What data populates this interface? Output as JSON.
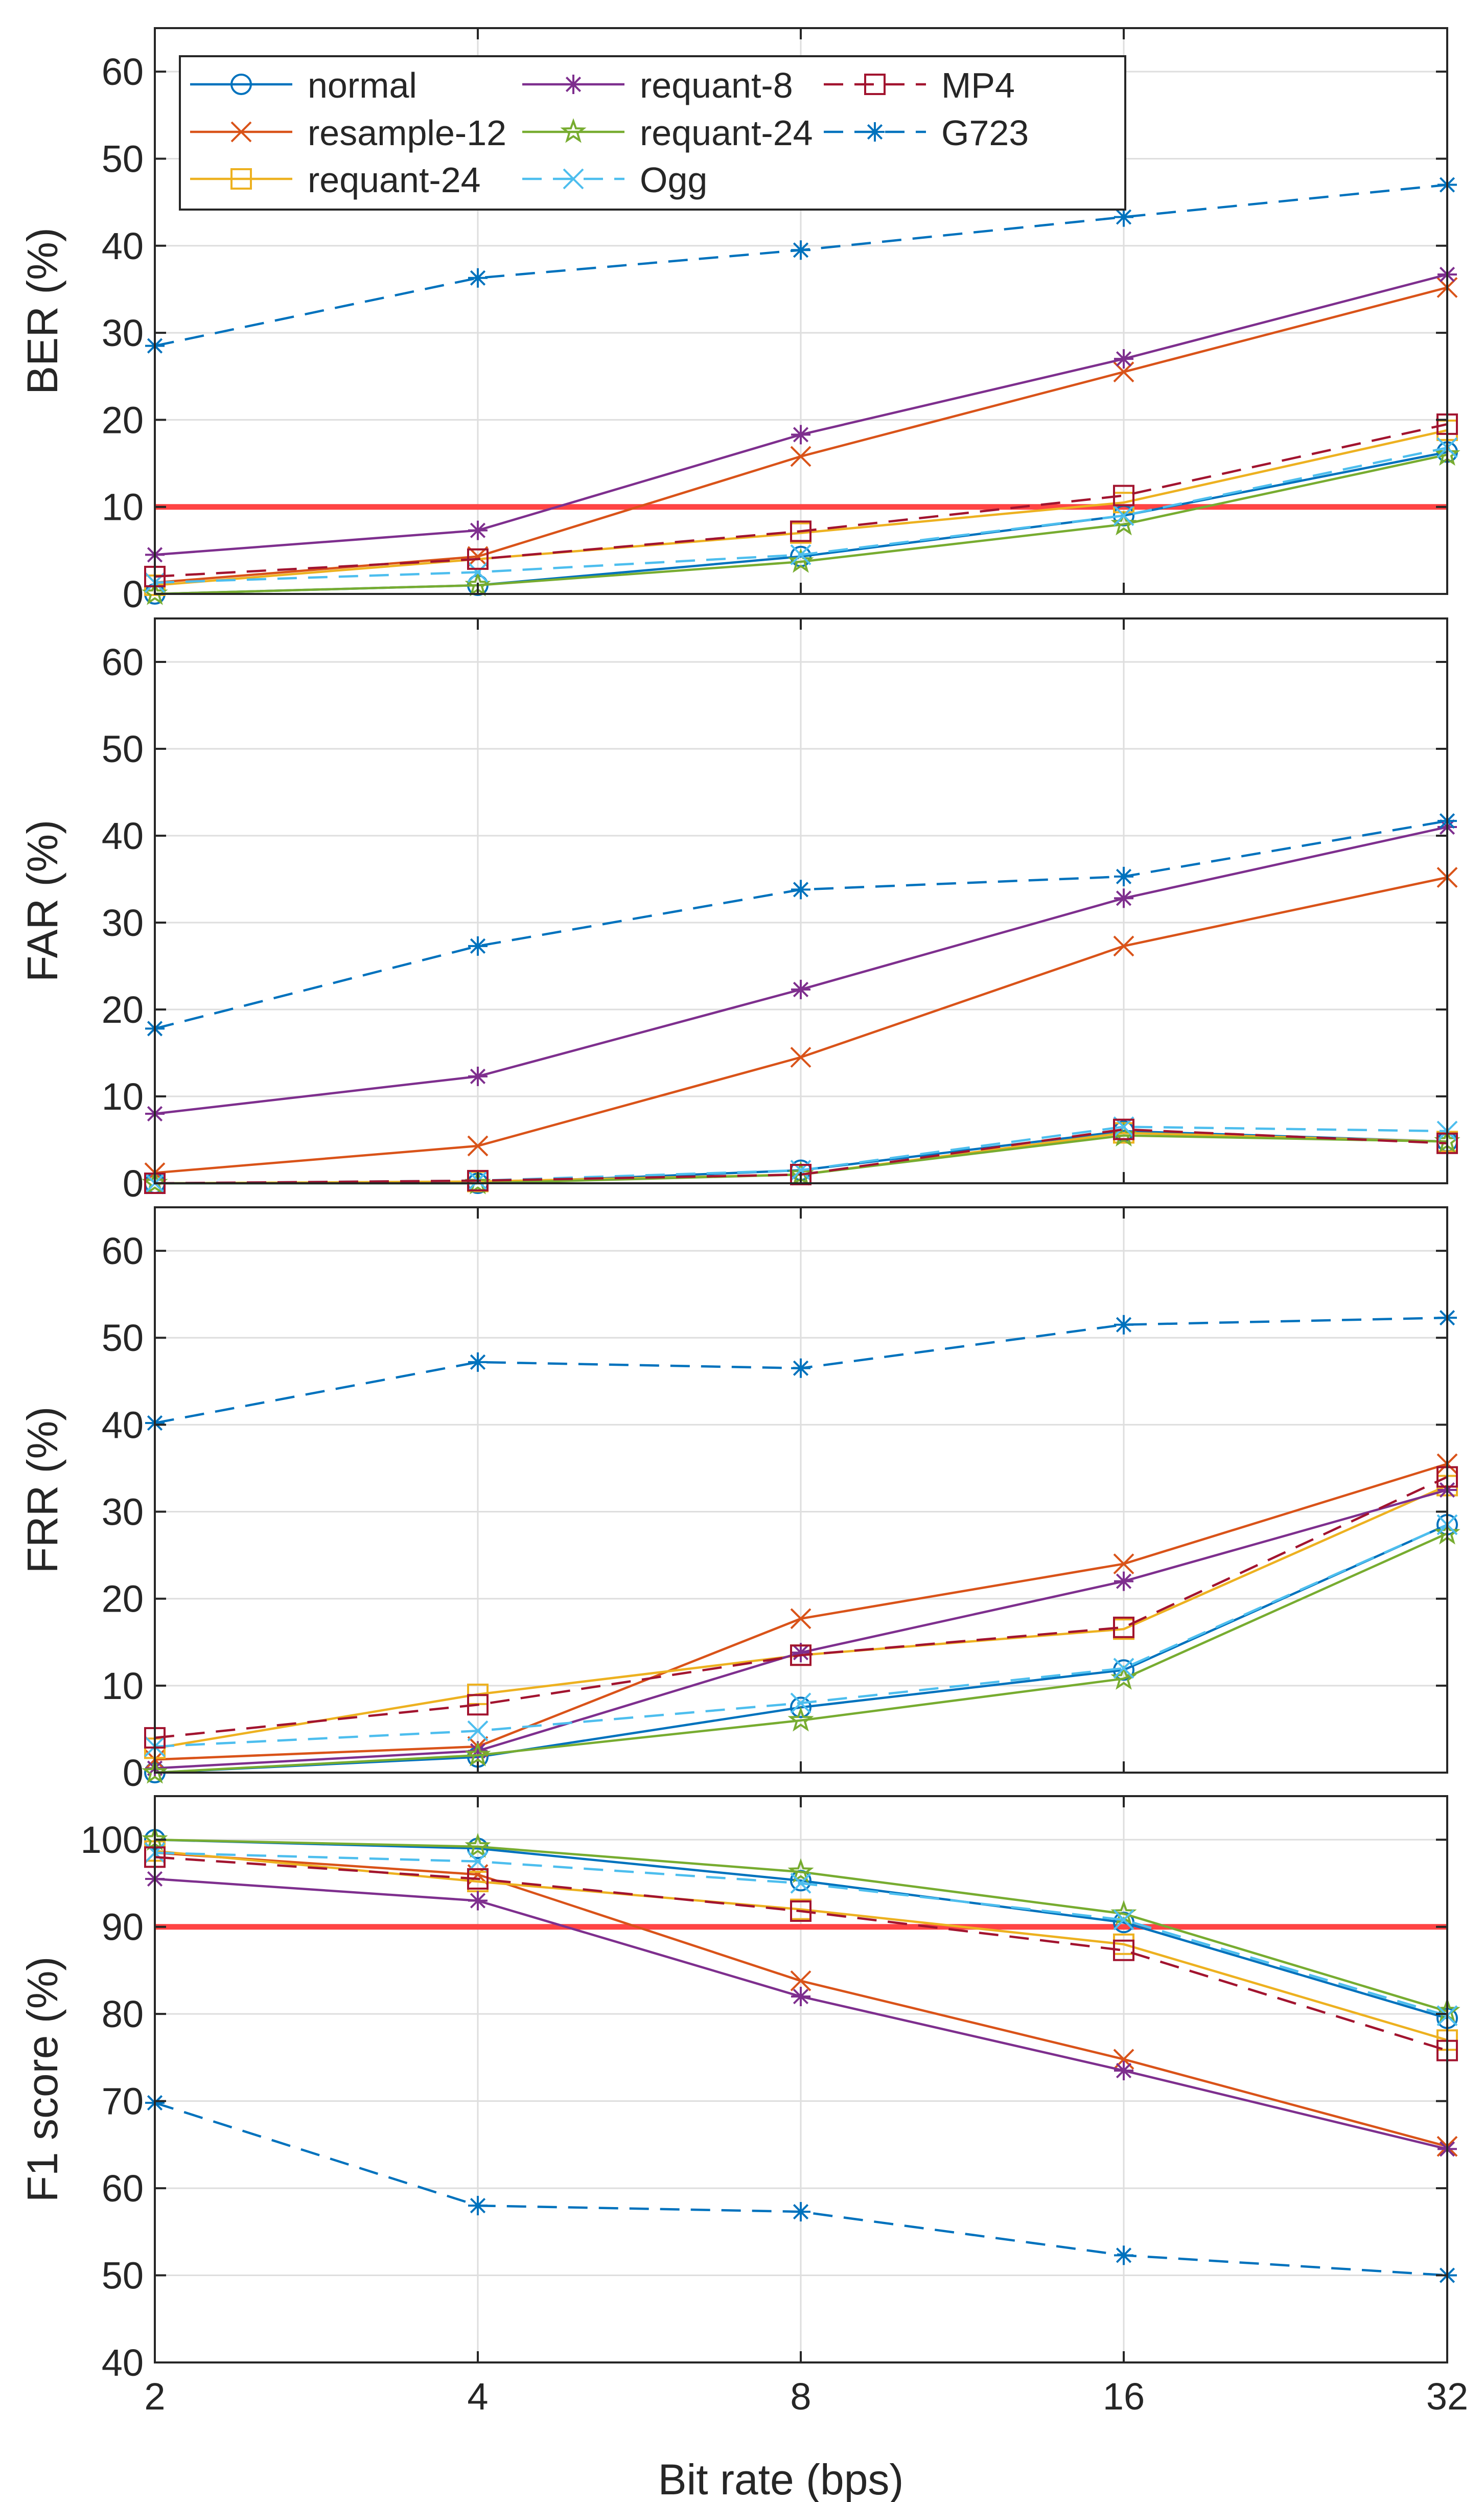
{
  "chart_data": {
    "type": "line",
    "x": [
      2,
      4,
      8,
      16,
      32
    ],
    "xscale": "log2",
    "xticks": [
      "2",
      "4",
      "8",
      "16",
      "32"
    ],
    "xlabel": "Bit rate (bps)",
    "legend_placement": "top-left of first panel",
    "series_styles": [
      {
        "name": "normal",
        "color": "#0072BD",
        "marker": "circle",
        "dash": "solid"
      },
      {
        "name": "resample-12",
        "color": "#D95319",
        "marker": "x",
        "dash": "solid"
      },
      {
        "name": "requant-24",
        "color": "#EDB120",
        "marker": "square",
        "dash": "solid"
      },
      {
        "name": "requant-8",
        "color": "#7E2F8E",
        "marker": "asterisk",
        "dash": "solid"
      },
      {
        "name": "requant-24",
        "color": "#77AC30",
        "marker": "star",
        "dash": "solid"
      },
      {
        "name": "Ogg",
        "color": "#4DBEEE",
        "marker": "x",
        "dash": "dashed"
      },
      {
        "name": "MP4",
        "color": "#A2142F",
        "marker": "square",
        "dash": "dashed"
      },
      {
        "name": "G723",
        "color": "#0072BD",
        "marker": "asterisk",
        "dash": "dashed"
      }
    ],
    "panels": [
      {
        "ylabel": "BER (%)",
        "ylim": [
          0,
          65
        ],
        "yticks": [
          0,
          10,
          20,
          30,
          40,
          50,
          60
        ],
        "threshold": 10,
        "threshold_color": "#FF4444",
        "series": [
          {
            "name": "normal",
            "values": [
              0,
              1,
              4.3,
              9,
              16.3
            ]
          },
          {
            "name": "resample-12",
            "values": [
              1.3,
              4.3,
              15.8,
              25.5,
              35.2
            ]
          },
          {
            "name": "requant-24",
            "values": [
              1,
              4,
              7,
              10.5,
              18.8
            ]
          },
          {
            "name": "requant-8",
            "values": [
              4.5,
              7.3,
              18.3,
              27,
              36.7
            ]
          },
          {
            "name": "requant-24",
            "values": [
              0,
              1,
              3.7,
              8,
              16
            ]
          },
          {
            "name": "Ogg",
            "values": [
              1.3,
              2.5,
              4.5,
              9,
              16.8
            ]
          },
          {
            "name": "MP4",
            "values": [
              2,
              4,
              7.2,
              11.3,
              19.5
            ]
          },
          {
            "name": "G723",
            "values": [
              28.5,
              36.3,
              39.5,
              43.3,
              47
            ]
          }
        ]
      },
      {
        "ylabel": "FAR (%)",
        "ylim": [
          0,
          65
        ],
        "yticks": [
          0,
          10,
          20,
          30,
          40,
          50,
          60
        ],
        "series": [
          {
            "name": "normal",
            "values": [
              0,
              0,
              1.5,
              6,
              4.8
            ]
          },
          {
            "name": "resample-12",
            "values": [
              1.2,
              4.3,
              14.5,
              27.3,
              35.2
            ]
          },
          {
            "name": "requant-24",
            "values": [
              0,
              0.2,
              1,
              5.8,
              4.8
            ]
          },
          {
            "name": "requant-8",
            "values": [
              8,
              12.3,
              22.3,
              32.8,
              41
            ]
          },
          {
            "name": "requant-24",
            "values": [
              0,
              0,
              1,
              5.5,
              4.8
            ]
          },
          {
            "name": "Ogg",
            "values": [
              0,
              0.3,
              1.5,
              6.5,
              6
            ]
          },
          {
            "name": "MP4",
            "values": [
              0,
              0.3,
              1,
              6.2,
              4.6
            ]
          },
          {
            "name": "G723",
            "values": [
              17.8,
              27.3,
              33.8,
              35.3,
              41.7
            ]
          }
        ]
      },
      {
        "ylabel": "FRR (%)",
        "ylim": [
          0,
          65
        ],
        "yticks": [
          0,
          10,
          20,
          30,
          40,
          50,
          60
        ],
        "series": [
          {
            "name": "normal",
            "values": [
              0,
              1.8,
              7.5,
              11.8,
              28.5
            ]
          },
          {
            "name": "resample-12",
            "values": [
              1.5,
              3,
              17.7,
              24,
              35.5
            ]
          },
          {
            "name": "requant-24",
            "values": [
              2.8,
              9,
              13.5,
              16.5,
              33
            ]
          },
          {
            "name": "requant-8",
            "values": [
              0.5,
              2.5,
              13.8,
              22,
              32.5
            ]
          },
          {
            "name": "requant-24",
            "values": [
              0,
              2,
              6,
              10.8,
              27.5
            ]
          },
          {
            "name": "Ogg",
            "values": [
              3,
              4.8,
              8,
              12,
              28.5
            ]
          },
          {
            "name": "MP4",
            "values": [
              4,
              7.8,
              13.5,
              16.7,
              34
            ]
          },
          {
            "name": "G723",
            "values": [
              40.2,
              47.2,
              46.5,
              51.5,
              52.3
            ]
          }
        ]
      },
      {
        "ylabel": "F1 score (%)",
        "ylim": [
          40,
          105
        ],
        "yticks": [
          40,
          50,
          60,
          70,
          80,
          90,
          100
        ],
        "threshold": 90,
        "threshold_color": "#FF4444",
        "series": [
          {
            "name": "normal",
            "values": [
              100,
              99,
              95.3,
              90.5,
              79.5
            ]
          },
          {
            "name": "resample-12",
            "values": [
              98.5,
              96,
              83.8,
              74.8,
              64.8
            ]
          },
          {
            "name": "requant-24",
            "values": [
              98.7,
              95.2,
              92,
              88,
              77
            ]
          },
          {
            "name": "requant-8",
            "values": [
              95.5,
              93,
              82,
              73.5,
              64.5
            ]
          },
          {
            "name": "requant-24",
            "values": [
              100,
              99.2,
              96.3,
              91.5,
              80.3
            ]
          },
          {
            "name": "Ogg",
            "values": [
              98.5,
              97.5,
              95,
              90.8,
              79.8
            ]
          },
          {
            "name": "MP4",
            "values": [
              98,
              95.5,
              91.8,
              87.3,
              75.8
            ]
          },
          {
            "name": "G723",
            "values": [
              69.8,
              58,
              57.3,
              52.3,
              50
            ]
          }
        ]
      }
    ]
  }
}
